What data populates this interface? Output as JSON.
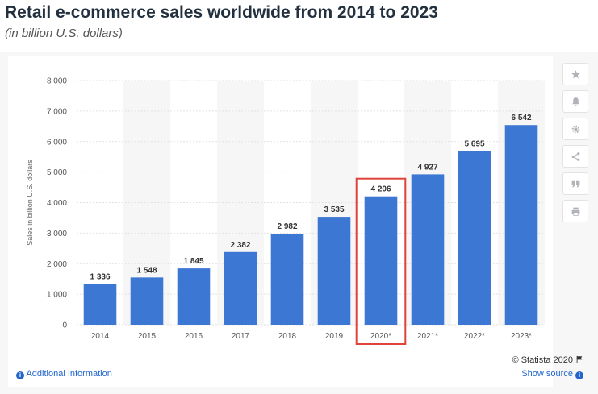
{
  "header": {
    "title": "Retail e-commerce sales worldwide from 2014 to 2023",
    "subtitle": "(in billion U.S. dollars)"
  },
  "chart_data": {
    "type": "bar",
    "ylabel": "Sales in billion U.S. dollars",
    "xlabel": "",
    "ylim": [
      0,
      8000
    ],
    "yticks": [
      "0",
      "1 000",
      "2 000",
      "3 000",
      "4 000",
      "5 000",
      "6 000",
      "7 000",
      "8 000"
    ],
    "categories": [
      "2014",
      "2015",
      "2016",
      "2017",
      "2018",
      "2019",
      "2020*",
      "2021*",
      "2022*",
      "2023*"
    ],
    "values": [
      1336,
      1548,
      1845,
      2382,
      2982,
      3535,
      4206,
      4927,
      5695,
      6542
    ],
    "value_labels": [
      "1 336",
      "1 548",
      "1 845",
      "2 382",
      "2 982",
      "3 535",
      "4 206",
      "4 927",
      "5 695",
      "6 542"
    ],
    "highlighted_category": "2020*",
    "bar_color": "#3d77d4",
    "highlight_color": "#e0433a",
    "grid": true
  },
  "sidebar": {
    "buttons": [
      {
        "icon": "star-icon",
        "name": "favorite-button"
      },
      {
        "icon": "bell-icon",
        "name": "notification-button"
      },
      {
        "icon": "gear-icon",
        "name": "settings-button"
      },
      {
        "icon": "share-icon",
        "name": "share-button"
      },
      {
        "icon": "quote-icon",
        "name": "cite-button"
      },
      {
        "icon": "print-icon",
        "name": "print-button"
      }
    ]
  },
  "footer": {
    "credit": "© Statista 2020",
    "additional_info": "Additional Information",
    "show_source": "Show source"
  }
}
